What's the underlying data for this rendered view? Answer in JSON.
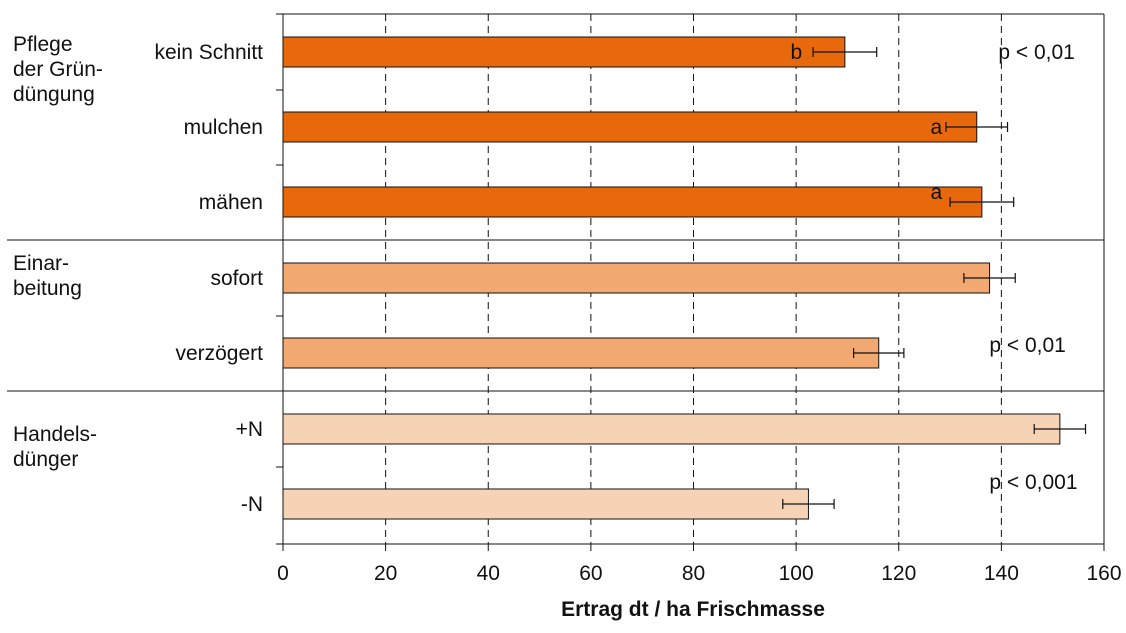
{
  "chart_data": {
    "type": "bar",
    "orientation": "horizontal",
    "xlabel": "Ertrag dt / ha Frischmasse",
    "xlim": [
      0,
      160
    ],
    "xticks": [
      0,
      20,
      40,
      60,
      80,
      100,
      120,
      140,
      160
    ],
    "grid": "vertical dashed",
    "groups": [
      {
        "label_lines": [
          "Pflege",
          "der Grün-",
          "düngung"
        ],
        "color": "#e8690b",
        "stat": "p < 0,01",
        "bars": [
          {
            "label": "kein Schnitt",
            "value": 109.5,
            "error": 6.2,
            "letter": "b"
          },
          {
            "label": "mulchen",
            "value": 135.2,
            "error": 6.0,
            "letter": "a"
          },
          {
            "label": "mähen",
            "value": 136.2,
            "error": 6.2,
            "letter": "a"
          }
        ]
      },
      {
        "label_lines": [
          "Einar-",
          "beitung"
        ],
        "color": "#f1a871",
        "stat": "p < 0,01",
        "bars": [
          {
            "label": "sofort",
            "value": 137.7,
            "error": 5.0,
            "letter": ""
          },
          {
            "label": "verzögert",
            "value": 116.1,
            "error": 4.9,
            "letter": ""
          }
        ]
      },
      {
        "label_lines": [
          "Handels-",
          "dünger"
        ],
        "color": "#f7d3b6",
        "stat": "p < 0,001",
        "bars": [
          {
            "label": "+N",
            "value": 151.4,
            "error": 5.0,
            "letter": ""
          },
          {
            "label": "-N",
            "value": 102.4,
            "error": 5.0,
            "letter": ""
          }
        ]
      }
    ]
  }
}
